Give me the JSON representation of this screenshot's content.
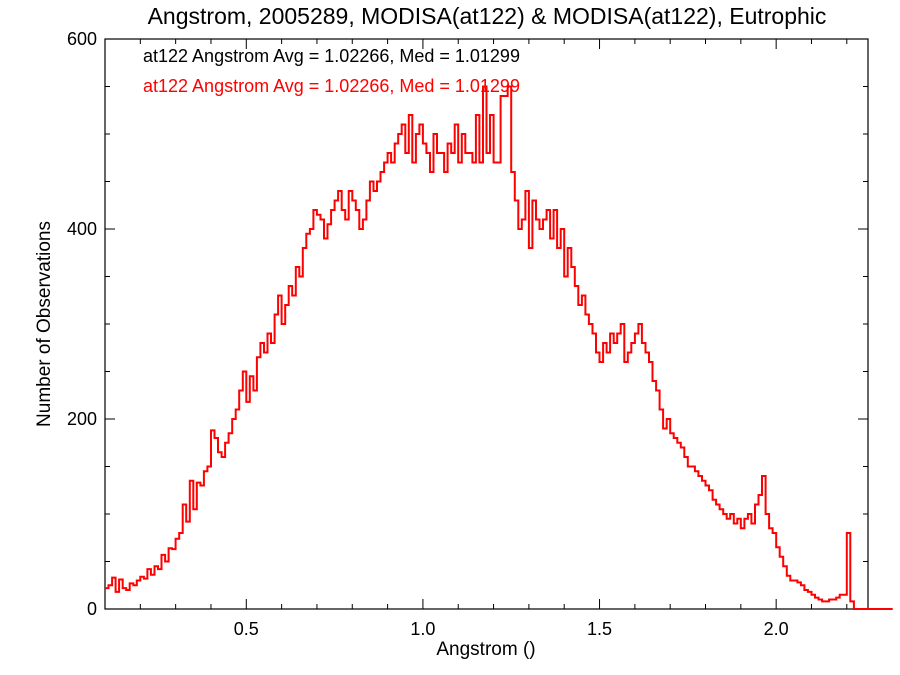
{
  "chart_data": {
    "type": "histogram",
    "title": "Angstrom, 2005289, MODISA(at122) & MODISA(at122), Eutrophic",
    "xlabel": "Angstrom ()",
    "ylabel": "Number of Observations",
    "xlim": [
      0.1,
      2.26
    ],
    "ylim": [
      0,
      600
    ],
    "x_ticks": [
      0.5,
      1.0,
      1.5,
      2.0
    ],
    "x_tick_labels": [
      "0.5",
      "1.0",
      "1.5",
      "2.0"
    ],
    "y_ticks": [
      0,
      200,
      400,
      600
    ],
    "y_tick_labels": [
      "0",
      "200",
      "400",
      "600"
    ],
    "grid": false,
    "legend_position": "top-left",
    "series": [
      {
        "name": "at122 Angstrom Avg = 1.02266, Med = 1.01299",
        "color": "#000000"
      },
      {
        "name": "at122 Angstrom Avg = 1.02266, Med = 1.01299",
        "color": "#ff0000"
      }
    ],
    "bin_width": 0.01,
    "bin_start": 0.1,
    "values": [
      22,
      25,
      33,
      18,
      31,
      22,
      20,
      27,
      25,
      30,
      34,
      32,
      42,
      36,
      45,
      42,
      57,
      50,
      64,
      63,
      74,
      80,
      110,
      92,
      135,
      105,
      133,
      130,
      145,
      150,
      188,
      180,
      165,
      160,
      175,
      185,
      200,
      210,
      230,
      250,
      218,
      245,
      230,
      265,
      280,
      270,
      290,
      280,
      310,
      330,
      300,
      320,
      340,
      330,
      360,
      350,
      380,
      395,
      400,
      420,
      415,
      410,
      390,
      405,
      420,
      430,
      440,
      420,
      410,
      440,
      430,
      420,
      400,
      410,
      430,
      450,
      440,
      450,
      460,
      470,
      480,
      470,
      490,
      500,
      510,
      480,
      520,
      470,
      500,
      510,
      490,
      480,
      460,
      500,
      480,
      480,
      460,
      490,
      480,
      510,
      470,
      500,
      480,
      480,
      470,
      520,
      470,
      550,
      480,
      520,
      470,
      470,
      540,
      540,
      550,
      460,
      430,
      400,
      410,
      440,
      380,
      430,
      410,
      400,
      410,
      420,
      390,
      420,
      380,
      400,
      350,
      380,
      360,
      340,
      320,
      330,
      310,
      300,
      290,
      270,
      260,
      280,
      270,
      290,
      280,
      290,
      300,
      260,
      270,
      280,
      290,
      300,
      280,
      270,
      260,
      240,
      230,
      210,
      190,
      200,
      185,
      180,
      175,
      170,
      160,
      150,
      150,
      145,
      140,
      135,
      130,
      125,
      115,
      110,
      105,
      100,
      95,
      100,
      90,
      95,
      85,
      95,
      100,
      90,
      110,
      120,
      140,
      100,
      85,
      80,
      65,
      55,
      45,
      35,
      30,
      30,
      28,
      25,
      20,
      18,
      15,
      12,
      10,
      8,
      8,
      10,
      10,
      12,
      15,
      15,
      80,
      8,
      0,
      0,
      0,
      0,
      0,
      0,
      0,
      0,
      0,
      0,
      0
    ]
  }
}
